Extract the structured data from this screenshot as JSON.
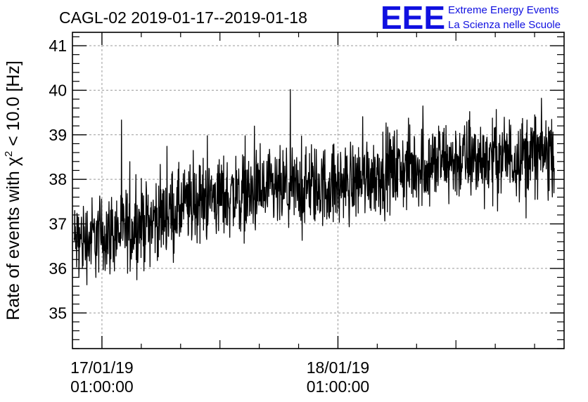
{
  "chart_data": {
    "type": "line",
    "title": "CAGL-02 2019-01-17--2019-01-18",
    "ylabel_prefix": "Rate of events with ",
    "ylabel_chi": "χ",
    "ylabel_sup": "2",
    "ylabel_suffix": " < 10.0 [Hz]",
    "xlabel": "",
    "ylim": [
      34.2,
      41.3
    ],
    "xlim": [
      "2019-01-16 22:00:00",
      "2019-01-19 00:00:00"
    ],
    "yticks": [
      35,
      36,
      37,
      38,
      39,
      40,
      41
    ],
    "xticks": [
      {
        "value": "2019-01-17 01:00:00",
        "date": "17/01/19",
        "time": "01:00:00"
      },
      {
        "value": "2019-01-18 01:00:00",
        "date": "18/01/19",
        "time": "01:00:00"
      }
    ],
    "grid": true,
    "series": [
      {
        "color": "#000000",
        "x_start": "2019-01-16 22:10:00",
        "x_end": "2019-01-18 23:00:00",
        "trend": [
          {
            "x": "2019-01-16 22:10:00",
            "y": 36.6
          },
          {
            "x": "2019-01-17 04:00:00",
            "y": 36.9
          },
          {
            "x": "2019-01-17 12:00:00",
            "y": 37.6
          },
          {
            "x": "2019-01-17 18:00:00",
            "y": 37.7
          },
          {
            "x": "2019-01-18 02:00:00",
            "y": 37.9
          },
          {
            "x": "2019-01-18 04:00:00",
            "y": 38.1
          },
          {
            "x": "2019-01-18 12:00:00",
            "y": 38.4
          },
          {
            "x": "2019-01-18 23:00:00",
            "y": 38.6
          }
        ],
        "noise_amplitude": 0.45,
        "y_min": 34.9,
        "y_max": 40.7
      }
    ]
  },
  "logo": {
    "mark": "EEE",
    "line1": "Extreme Energy Events",
    "line2": "La Scienza nelle Scuole",
    "color": "#1010e0"
  }
}
